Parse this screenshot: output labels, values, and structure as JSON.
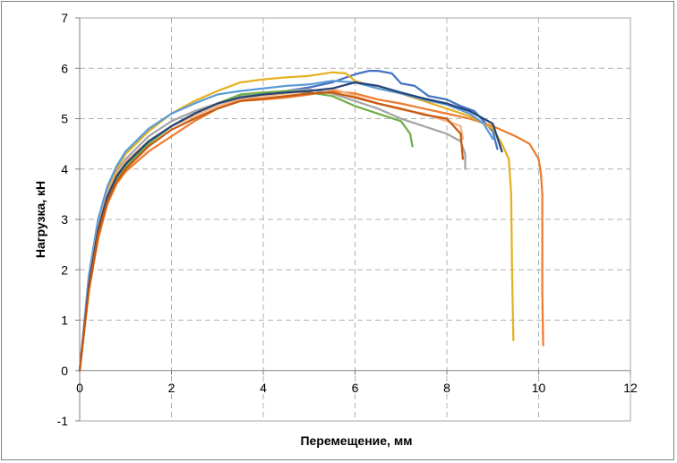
{
  "chart_data": {
    "type": "line",
    "title": "",
    "xlabel": "Перемещение, мм",
    "ylabel": "Нагрузка, кН",
    "xlim": [
      0,
      12
    ],
    "ylim": [
      -1,
      7
    ],
    "x_ticks": [
      "0",
      "2",
      "4",
      "6",
      "8",
      "10",
      "12"
    ],
    "y_ticks": [
      "-1",
      "0",
      "1",
      "2",
      "3",
      "4",
      "5",
      "6",
      "7"
    ],
    "grid": true,
    "legend": "none",
    "series": [
      {
        "color": "#4472c4",
        "points": [
          [
            0,
            0
          ],
          [
            0.2,
            1.7
          ],
          [
            0.4,
            2.8
          ],
          [
            0.6,
            3.45
          ],
          [
            0.8,
            3.85
          ],
          [
            1.0,
            4.1
          ],
          [
            1.5,
            4.55
          ],
          [
            2,
            4.85
          ],
          [
            2.5,
            5.1
          ],
          [
            3,
            5.3
          ],
          [
            3.5,
            5.45
          ],
          [
            4,
            5.5
          ],
          [
            4.5,
            5.55
          ],
          [
            5,
            5.62
          ],
          [
            5.5,
            5.72
          ],
          [
            6,
            5.88
          ],
          [
            6.3,
            5.95
          ],
          [
            6.5,
            5.95
          ],
          [
            6.8,
            5.9
          ],
          [
            7,
            5.7
          ],
          [
            7.3,
            5.65
          ],
          [
            7.6,
            5.45
          ],
          [
            8,
            5.38
          ],
          [
            8.3,
            5.25
          ],
          [
            8.6,
            5.15
          ],
          [
            8.8,
            4.95
          ],
          [
            9.0,
            4.75
          ],
          [
            9.1,
            4.4
          ]
        ]
      },
      {
        "color": "#ed7d31",
        "points": [
          [
            0,
            0
          ],
          [
            0.2,
            1.6
          ],
          [
            0.4,
            2.6
          ],
          [
            0.6,
            3.3
          ],
          [
            0.8,
            3.7
          ],
          [
            1.0,
            3.95
          ],
          [
            1.5,
            4.35
          ],
          [
            2,
            4.65
          ],
          [
            2.5,
            4.95
          ],
          [
            3,
            5.2
          ],
          [
            3.5,
            5.35
          ],
          [
            4,
            5.38
          ],
          [
            4.5,
            5.42
          ],
          [
            5,
            5.48
          ],
          [
            5.5,
            5.55
          ],
          [
            6,
            5.5
          ],
          [
            6.5,
            5.38
          ],
          [
            7,
            5.3
          ],
          [
            7.5,
            5.2
          ],
          [
            8,
            5.1
          ],
          [
            8.5,
            5.0
          ],
          [
            9,
            4.85
          ],
          [
            9.5,
            4.65
          ],
          [
            9.8,
            4.5
          ],
          [
            10.0,
            4.2
          ],
          [
            10.05,
            3.9
          ],
          [
            10.08,
            3.5
          ],
          [
            10.08,
            1.5
          ],
          [
            10.1,
            0.5
          ]
        ]
      },
      {
        "color": "#a5a5a5",
        "points": [
          [
            0,
            0
          ],
          [
            0.2,
            1.8
          ],
          [
            0.4,
            2.9
          ],
          [
            0.6,
            3.55
          ],
          [
            0.8,
            3.95
          ],
          [
            1.0,
            4.2
          ],
          [
            1.5,
            4.65
          ],
          [
            2,
            4.95
          ],
          [
            2.5,
            5.15
          ],
          [
            3,
            5.3
          ],
          [
            3.5,
            5.45
          ],
          [
            4,
            5.5
          ],
          [
            4.5,
            5.55
          ],
          [
            5,
            5.58
          ],
          [
            5.5,
            5.5
          ],
          [
            6,
            5.35
          ],
          [
            6.5,
            5.2
          ],
          [
            7,
            5.0
          ],
          [
            7.5,
            4.85
          ],
          [
            8,
            4.7
          ],
          [
            8.3,
            4.55
          ],
          [
            8.4,
            4.3
          ],
          [
            8.4,
            4.0
          ]
        ]
      },
      {
        "color": "#e5b021",
        "points": [
          [
            0,
            0
          ],
          [
            0.2,
            1.75
          ],
          [
            0.4,
            2.9
          ],
          [
            0.6,
            3.6
          ],
          [
            0.8,
            4.0
          ],
          [
            1.0,
            4.3
          ],
          [
            1.5,
            4.75
          ],
          [
            2,
            5.1
          ],
          [
            2.5,
            5.35
          ],
          [
            3,
            5.55
          ],
          [
            3.5,
            5.72
          ],
          [
            4,
            5.78
          ],
          [
            4.5,
            5.82
          ],
          [
            5,
            5.85
          ],
          [
            5.5,
            5.92
          ],
          [
            5.8,
            5.9
          ],
          [
            6,
            5.75
          ],
          [
            6.5,
            5.6
          ],
          [
            7,
            5.5
          ],
          [
            7.5,
            5.35
          ],
          [
            8,
            5.2
          ],
          [
            8.5,
            5.05
          ],
          [
            9,
            4.8
          ],
          [
            9.2,
            4.5
          ],
          [
            9.35,
            4.2
          ],
          [
            9.4,
            3.5
          ],
          [
            9.42,
            2.0
          ],
          [
            9.45,
            0.6
          ]
        ]
      },
      {
        "color": "#5b9bd5",
        "points": [
          [
            0,
            0
          ],
          [
            0.2,
            1.9
          ],
          [
            0.4,
            3.0
          ],
          [
            0.6,
            3.65
          ],
          [
            0.8,
            4.05
          ],
          [
            1.0,
            4.35
          ],
          [
            1.5,
            4.8
          ],
          [
            2,
            5.1
          ],
          [
            2.5,
            5.3
          ],
          [
            3,
            5.48
          ],
          [
            3.5,
            5.55
          ],
          [
            4,
            5.6
          ],
          [
            4.5,
            5.65
          ],
          [
            5,
            5.68
          ],
          [
            5.5,
            5.75
          ],
          [
            6,
            5.72
          ],
          [
            6.5,
            5.6
          ],
          [
            7,
            5.5
          ],
          [
            7.5,
            5.38
          ],
          [
            8,
            5.28
          ],
          [
            8.5,
            5.1
          ],
          [
            8.8,
            4.9
          ],
          [
            9.0,
            4.6
          ]
        ]
      },
      {
        "color": "#70ad47",
        "points": [
          [
            0,
            0
          ],
          [
            0.2,
            1.7
          ],
          [
            0.4,
            2.75
          ],
          [
            0.6,
            3.4
          ],
          [
            0.8,
            3.8
          ],
          [
            1.0,
            4.05
          ],
          [
            1.5,
            4.5
          ],
          [
            2,
            4.85
          ],
          [
            2.5,
            5.1
          ],
          [
            3,
            5.3
          ],
          [
            3.5,
            5.48
          ],
          [
            4,
            5.52
          ],
          [
            4.5,
            5.55
          ],
          [
            5,
            5.52
          ],
          [
            5.5,
            5.45
          ],
          [
            6,
            5.25
          ],
          [
            6.5,
            5.1
          ],
          [
            7,
            4.95
          ],
          [
            7.2,
            4.7
          ],
          [
            7.25,
            4.45
          ]
        ]
      },
      {
        "color": "#f4b183",
        "points": [
          [
            0,
            0
          ],
          [
            0.2,
            1.75
          ],
          [
            0.4,
            2.85
          ],
          [
            0.6,
            3.5
          ],
          [
            0.8,
            3.9
          ],
          [
            1.0,
            4.15
          ],
          [
            1.5,
            4.55
          ],
          [
            2,
            4.85
          ],
          [
            2.5,
            5.05
          ],
          [
            3,
            5.25
          ],
          [
            3.5,
            5.38
          ],
          [
            4,
            5.45
          ],
          [
            4.5,
            5.5
          ],
          [
            5,
            5.55
          ],
          [
            5.5,
            5.6
          ],
          [
            6,
            5.45
          ],
          [
            6.5,
            5.3
          ],
          [
            7,
            5.18
          ],
          [
            7.5,
            5.1
          ],
          [
            8,
            4.95
          ],
          [
            8.3,
            4.85
          ],
          [
            8.35,
            4.6
          ]
        ]
      },
      {
        "color": "#264478",
        "points": [
          [
            0,
            0
          ],
          [
            0.2,
            1.7
          ],
          [
            0.4,
            2.8
          ],
          [
            0.6,
            3.45
          ],
          [
            0.8,
            3.85
          ],
          [
            1.0,
            4.1
          ],
          [
            1.5,
            4.55
          ],
          [
            2,
            4.85
          ],
          [
            2.5,
            5.1
          ],
          [
            3,
            5.3
          ],
          [
            3.5,
            5.42
          ],
          [
            4,
            5.48
          ],
          [
            4.5,
            5.52
          ],
          [
            5,
            5.55
          ],
          [
            5.5,
            5.6
          ],
          [
            6,
            5.72
          ],
          [
            6.5,
            5.65
          ],
          [
            7,
            5.52
          ],
          [
            7.5,
            5.4
          ],
          [
            8,
            5.3
          ],
          [
            8.5,
            5.15
          ],
          [
            9.0,
            4.9
          ],
          [
            9.2,
            4.35
          ]
        ]
      },
      {
        "color": "#c55a11",
        "points": [
          [
            0,
            0
          ],
          [
            0.2,
            1.6
          ],
          [
            0.4,
            2.7
          ],
          [
            0.6,
            3.35
          ],
          [
            0.8,
            3.75
          ],
          [
            1.0,
            4.0
          ],
          [
            1.5,
            4.45
          ],
          [
            2,
            4.78
          ],
          [
            2.5,
            5.0
          ],
          [
            3,
            5.2
          ],
          [
            3.5,
            5.35
          ],
          [
            4,
            5.4
          ],
          [
            4.5,
            5.45
          ],
          [
            5,
            5.5
          ],
          [
            5.5,
            5.52
          ],
          [
            6,
            5.42
          ],
          [
            6.5,
            5.3
          ],
          [
            7,
            5.2
          ],
          [
            7.5,
            5.08
          ],
          [
            8,
            5.0
          ],
          [
            8.3,
            4.7
          ],
          [
            8.35,
            4.2
          ]
        ]
      }
    ]
  }
}
